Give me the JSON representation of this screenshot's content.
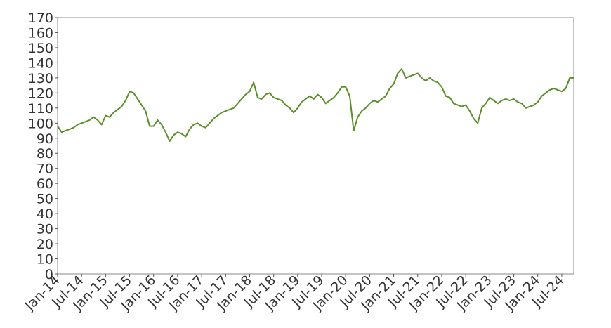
{
  "chart_data": {
    "type": "line",
    "color": "#5b8f29",
    "x": [
      "2014-01",
      "2014-02",
      "2014-03",
      "2014-04",
      "2014-05",
      "2014-06",
      "2014-07",
      "2014-08",
      "2014-09",
      "2014-10",
      "2014-11",
      "2014-12",
      "2015-01",
      "2015-02",
      "2015-03",
      "2015-04",
      "2015-05",
      "2015-06",
      "2015-07",
      "2015-08",
      "2015-09",
      "2015-10",
      "2015-11",
      "2015-12",
      "2016-01",
      "2016-02",
      "2016-03",
      "2016-04",
      "2016-05",
      "2016-06",
      "2016-07",
      "2016-08",
      "2016-09",
      "2016-10",
      "2016-11",
      "2016-12",
      "2017-01",
      "2017-02",
      "2017-03",
      "2017-04",
      "2017-05",
      "2017-06",
      "2017-07",
      "2017-08",
      "2017-09",
      "2017-10",
      "2017-11",
      "2017-12",
      "2018-01",
      "2018-02",
      "2018-03",
      "2018-04",
      "2018-05",
      "2018-06",
      "2018-07",
      "2018-08",
      "2018-09",
      "2018-10",
      "2018-11",
      "2018-12",
      "2019-01",
      "2019-02",
      "2019-03",
      "2019-04",
      "2019-05",
      "2019-06",
      "2019-07",
      "2019-08",
      "2019-09",
      "2019-10",
      "2019-11",
      "2019-12",
      "2020-01",
      "2020-02",
      "2020-03",
      "2020-04",
      "2020-05",
      "2020-06",
      "2020-07",
      "2020-08",
      "2020-09",
      "2020-10",
      "2020-11",
      "2020-12",
      "2021-01",
      "2021-02",
      "2021-03",
      "2021-04",
      "2021-05",
      "2021-06",
      "2021-07",
      "2021-08",
      "2021-09",
      "2021-10",
      "2021-11",
      "2021-12",
      "2022-01",
      "2022-02",
      "2022-03",
      "2022-04",
      "2022-05",
      "2022-06",
      "2022-07",
      "2022-08",
      "2022-09",
      "2022-10",
      "2022-11",
      "2022-12",
      "2023-01",
      "2023-02",
      "2023-03",
      "2023-04",
      "2023-05",
      "2023-06",
      "2023-07",
      "2023-08",
      "2023-09",
      "2023-10",
      "2023-11",
      "2023-12",
      "2024-01",
      "2024-02",
      "2024-03",
      "2024-04",
      "2024-05",
      "2024-06",
      "2024-07",
      "2024-08",
      "2024-09",
      "2024-10"
    ],
    "values": [
      98,
      94,
      95,
      96,
      97,
      99,
      100,
      101,
      102,
      104,
      102,
      99,
      105,
      104,
      107,
      109,
      111,
      115,
      121,
      120,
      116,
      112,
      108,
      98,
      98,
      102,
      99,
      94,
      88,
      92,
      94,
      93,
      91,
      96,
      99,
      100,
      98,
      97,
      100,
      103,
      105,
      107,
      108,
      109,
      110,
      113,
      116,
      119,
      121,
      127,
      117,
      116,
      119,
      120,
      117,
      116,
      115,
      112,
      110,
      107,
      110,
      114,
      116,
      118,
      116,
      119,
      117,
      113,
      115,
      117,
      120,
      124,
      124,
      118,
      95,
      104,
      108,
      110,
      113,
      115,
      114,
      116,
      118,
      123,
      126,
      133,
      136,
      130,
      131,
      132,
      133,
      130,
      128,
      130,
      128,
      127,
      124,
      118,
      117,
      113,
      112,
      111,
      112,
      108,
      103,
      100,
      110,
      113,
      117,
      115,
      113,
      115,
      116,
      115,
      116,
      114,
      113,
      110,
      111,
      112,
      114,
      118,
      120,
      122,
      123,
      122,
      121,
      123,
      130,
      130
    ],
    "xlim": [
      "2014-01",
      "2024-10"
    ],
    "xticks": [
      {
        "value": "2014-01",
        "label": "Jan-14"
      },
      {
        "value": "2014-07",
        "label": "Jul-14"
      },
      {
        "value": "2015-01",
        "label": "Jan-15"
      },
      {
        "value": "2015-07",
        "label": "Jul-15"
      },
      {
        "value": "2016-01",
        "label": "Jan-16"
      },
      {
        "value": "2016-07",
        "label": "Jul-16"
      },
      {
        "value": "2017-01",
        "label": "Jan-17"
      },
      {
        "value": "2017-07",
        "label": "Jul-17"
      },
      {
        "value": "2018-01",
        "label": "Jan-18"
      },
      {
        "value": "2018-07",
        "label": "Jul-18"
      },
      {
        "value": "2019-01",
        "label": "Jan-19"
      },
      {
        "value": "2019-07",
        "label": "Jul-19"
      },
      {
        "value": "2020-01",
        "label": "Jan-20"
      },
      {
        "value": "2020-07",
        "label": "Jul-20"
      },
      {
        "value": "2021-01",
        "label": "Jan-21"
      },
      {
        "value": "2021-07",
        "label": "Jul-21"
      },
      {
        "value": "2022-01",
        "label": "Jan-22"
      },
      {
        "value": "2022-07",
        "label": "Jul-22"
      },
      {
        "value": "2023-01",
        "label": "Jan-23"
      },
      {
        "value": "2023-07",
        "label": "Jul-23"
      },
      {
        "value": "2024-01",
        "label": "Jan-24"
      },
      {
        "value": "2024-07",
        "label": "Jul-24"
      }
    ],
    "ylim": [
      0,
      170
    ],
    "yticks": [
      0,
      10,
      20,
      30,
      40,
      50,
      60,
      70,
      80,
      90,
      100,
      110,
      120,
      130,
      140,
      150,
      160,
      170
    ],
    "grid": false
  }
}
